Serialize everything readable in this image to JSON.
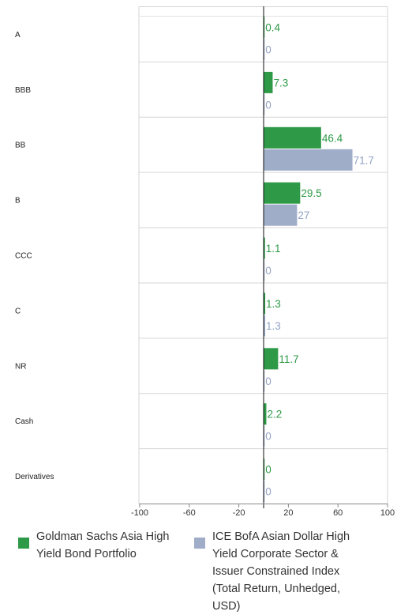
{
  "chart_data": {
    "type": "bar",
    "orientation": "horizontal",
    "categories": [
      "A",
      "BBB",
      "BB",
      "B",
      "CCC",
      "C",
      "NR",
      "Cash",
      "Derivatives"
    ],
    "series": [
      {
        "name": "Goldman Sachs Asia High Yield Bond Portfolio",
        "color": "#2e9a47",
        "values": [
          0.4,
          7.3,
          46.4,
          29.5,
          1.1,
          1.3,
          11.7,
          2.2,
          0
        ],
        "labels": [
          "0.4",
          "7.3",
          "46.4",
          "29.5",
          "1.1",
          "1.3",
          "11.7",
          "2.2",
          "0"
        ]
      },
      {
        "name": "ICE BofA Asian Dollar High Yield Corporate Sector & Issuer Constrained Index (Total Return, Unhedged, USD)",
        "color": "#9fadc9",
        "values": [
          0,
          0,
          71.7,
          27,
          0,
          1.3,
          0,
          0,
          0
        ],
        "labels": [
          "0",
          "0",
          "71.7",
          "27",
          "0",
          "1.3",
          "0",
          "0",
          "0"
        ]
      }
    ],
    "xlim": [
      -100,
      100
    ],
    "xticks": [
      -100,
      -60,
      -20,
      20,
      60,
      100
    ],
    "xtick_labels": [
      "-100",
      "-60",
      "-20",
      "20",
      "60",
      "100"
    ],
    "grid": true,
    "legend_position": "bottom"
  },
  "legend": [
    {
      "lines": [
        "Goldman Sachs Asia High",
        "Yield Bond Portfolio"
      ]
    },
    {
      "lines": [
        "ICE BofA Asian Dollar High",
        "Yield Corporate Sector &",
        "Issuer Constrained Index",
        "(Total Return, Unhedged,",
        "USD)"
      ]
    }
  ]
}
